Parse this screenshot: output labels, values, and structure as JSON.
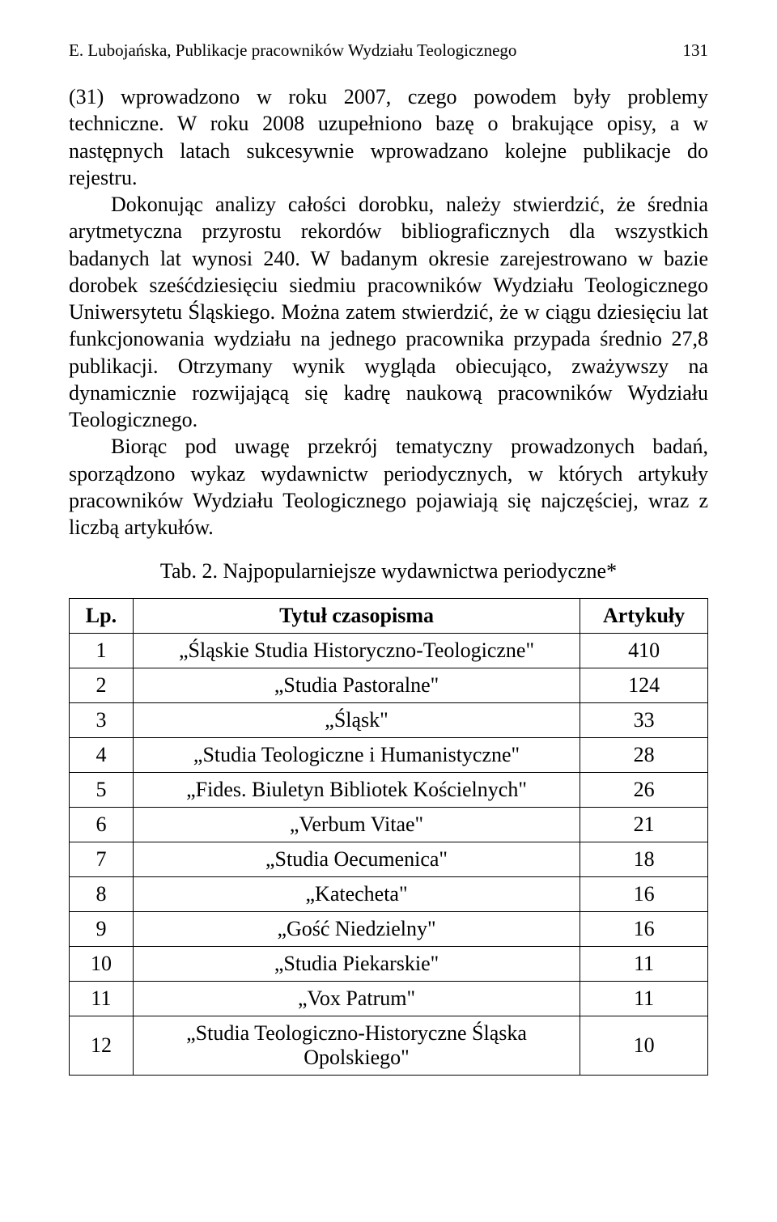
{
  "header": {
    "running_title": "E. Lubojańska, Publikacje pracowników Wydziału Teologicznego",
    "page_number": "131"
  },
  "paragraphs": {
    "p1": "(31) wprowadzono w roku 2007, czego powodem były problemy techniczne. W roku 2008 uzupełniono bazę o brakujące opisy, a w następnych latach sukcesywnie wprowadzano kolejne publikacje do rejestru.",
    "p2": "Dokonując analizy całości dorobku, należy stwierdzić, że średnia arytmetyczna przyrostu rekordów bibliograficznych dla wszystkich badanych lat wynosi 240. W badanym okresie zarejestrowano w bazie dorobek sześćdziesięciu siedmiu pracowników Wydziału Teologicznego Uniwersytetu Śląskiego. Można zatem stwierdzić, że w ciągu dziesięciu lat funkcjonowania wydziału na jednego pracownika przypada średnio 27,8 publikacji. Otrzymany wynik wygląda obiecująco, zważywszy na dynamicznie rozwijającą się kadrę naukową pracowników Wydziału Teologicznego.",
    "p3": "Biorąc pod uwagę przekrój tematyczny prowadzonych badań, sporządzono wykaz wydawnictw periodycznych, w których artykuły pracowników Wydziału Teologicznego pojawiają się najczęściej, wraz z liczbą artykułów."
  },
  "table": {
    "caption": "Tab. 2. Najpopularniejsze wydawnictwa periodyczne*",
    "headers": {
      "lp": "Lp.",
      "title": "Tytuł czasopisma",
      "count": "Artykuły"
    },
    "rows": [
      {
        "lp": "1",
        "title": "„Śląskie Studia Historyczno-Teologiczne\"",
        "count": "410"
      },
      {
        "lp": "2",
        "title": "„Studia Pastoralne\"",
        "count": "124"
      },
      {
        "lp": "3",
        "title": "„Śląsk\"",
        "count": "33"
      },
      {
        "lp": "4",
        "title": "„Studia Teologiczne i Humanistyczne\"",
        "count": "28"
      },
      {
        "lp": "5",
        "title": "„Fides. Biuletyn Bibliotek Kościelnych\"",
        "count": "26"
      },
      {
        "lp": "6",
        "title": "„Verbum Vitae\"",
        "count": "21"
      },
      {
        "lp": "7",
        "title": "„Studia Oecumenica\"",
        "count": "18"
      },
      {
        "lp": "8",
        "title": "„Katecheta\"",
        "count": "16"
      },
      {
        "lp": "9",
        "title": "„Gość Niedzielny\"",
        "count": "16"
      },
      {
        "lp": "10",
        "title": "„Studia Piekarskie\"",
        "count": "11"
      },
      {
        "lp": "11",
        "title": "„Vox Patrum\"",
        "count": "11"
      },
      {
        "lp": "12",
        "title": "„Studia Teologiczno-Historyczne Śląska Opolskiego\"",
        "count": "10"
      }
    ]
  }
}
